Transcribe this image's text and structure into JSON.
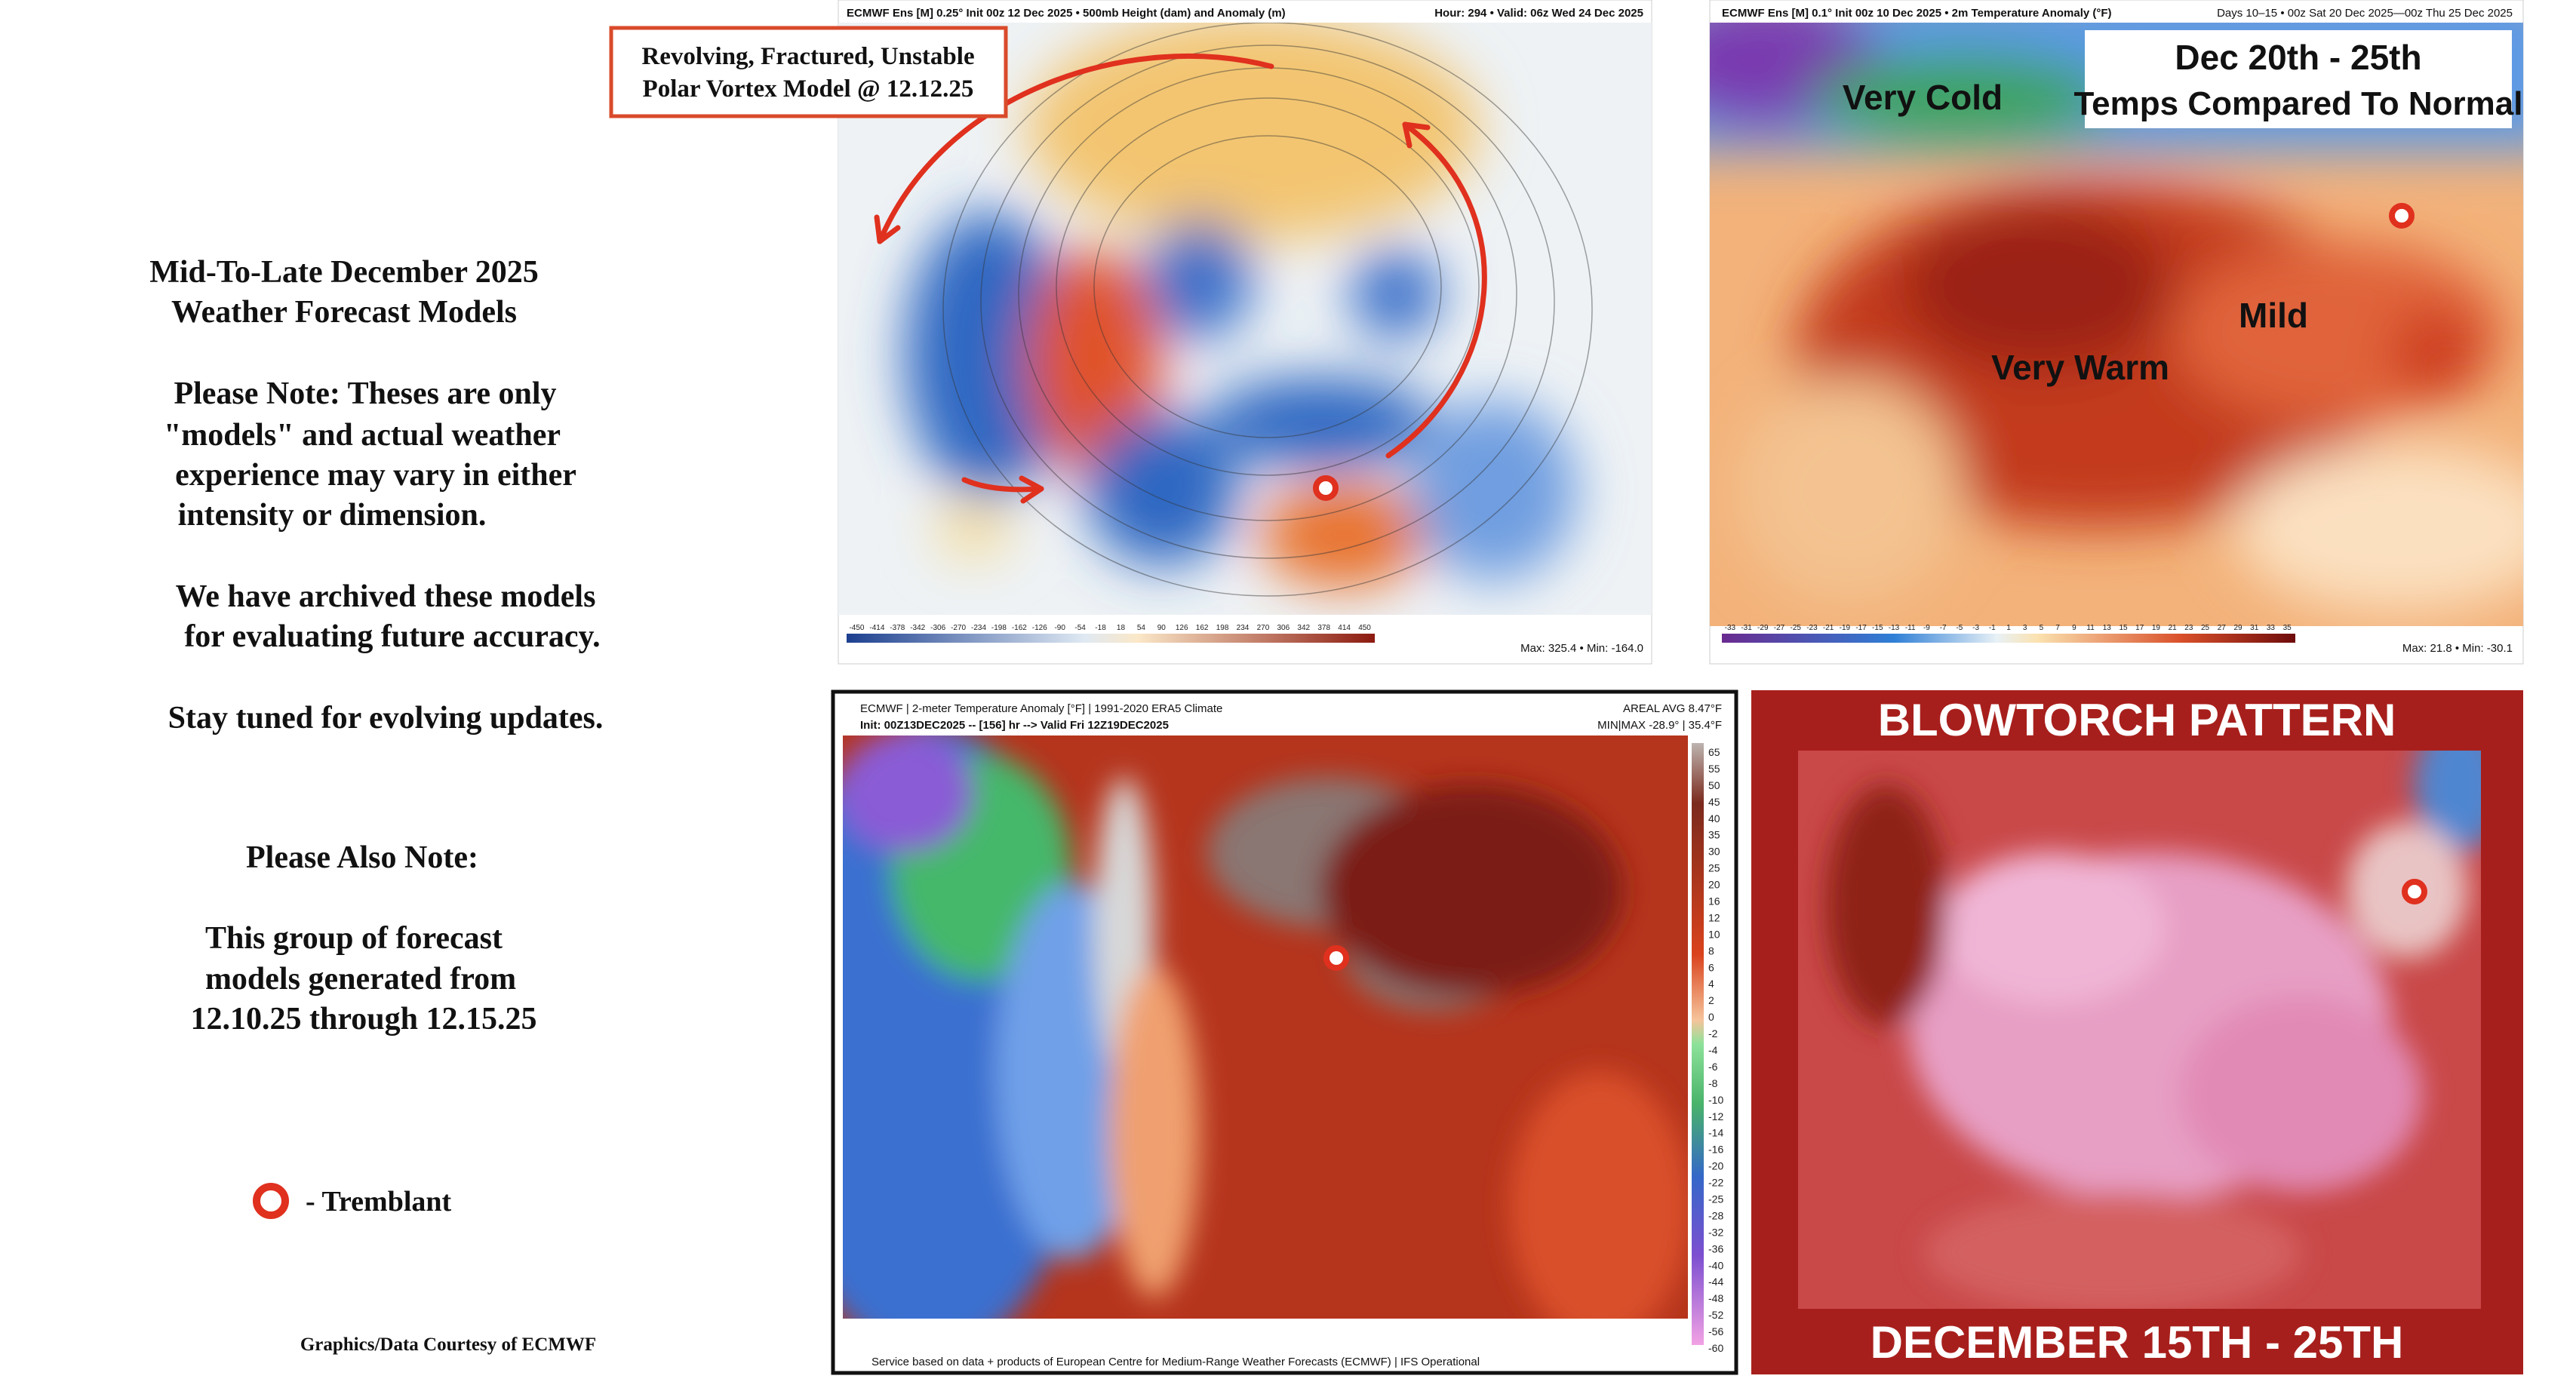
{
  "left_text": {
    "intro": [
      "Mid-To-Late December 2025",
      "Weather Forecast Models"
    ],
    "note": [
      "Please Note: Theses are only",
      "\"models\" and actual weather",
      "experience may vary in either",
      "intensity or dimension."
    ],
    "archive": [
      "We have archived these models",
      "for evaluating future accuracy."
    ],
    "stay_tuned": "Stay tuned for evolving updates.",
    "also_note_title": "Please Also Note:",
    "also_note": [
      "This group of forecast",
      "models generated from",
      "12.10.25 through 12.15.25"
    ],
    "legend": "- Tremblant",
    "credit": "Graphics/Data Courtesy of ECMWF"
  },
  "callout": [
    "Revolving, Fractured, Unstable",
    "Polar Vortex Model @ 12.12.25"
  ],
  "panels": [
    {
      "header_left": "ECMWF Ens [M] 0.25° Init 00z 12 Dec 2025 • 500mb Height (dam) and Anomaly (m)",
      "header_right": "Hour: 294 • Valid: 06z Wed 24 Dec 2025",
      "scale": [
        "-450",
        "-414",
        "-378",
        "-342",
        "-306",
        "-270",
        "-234",
        "-198",
        "-162",
        "-126",
        "-90",
        "-54",
        "-18",
        "18",
        "54",
        "90",
        "126",
        "162",
        "198",
        "234",
        "270",
        "306",
        "342",
        "378",
        "414",
        "450"
      ],
      "footer": "Max: 325.4 • Min: -164.0"
    },
    {
      "header_left": "ECMWF Ens [M] 0.1° Init 00z 10 Dec 2025 • 2m Temperature Anomaly (°F)",
      "header_right": "Days 10–15 • 00z Sat 20 Dec 2025—00z Thu 25 Dec 2025",
      "labels": {
        "very_cold": "Very Cold",
        "dates": "Dec 20th - 25th",
        "compare": "Temps Compared To Normal",
        "very_warm": "Very Warm",
        "mild": "Mild"
      },
      "scale": [
        "-33",
        "-31",
        "-29",
        "-27",
        "-25",
        "-23",
        "-21",
        "-19",
        "-17",
        "-15",
        "-13",
        "-11",
        "-9",
        "-7",
        "-5",
        "-3",
        "-1",
        "1",
        "3",
        "5",
        "7",
        "9",
        "11",
        "13",
        "15",
        "17",
        "19",
        "21",
        "23",
        "25",
        "27",
        "29",
        "31",
        "33",
        "35"
      ],
      "footer": "Max: 21.8 • Min: -30.1"
    },
    {
      "header_left": "ECMWF | 2-meter Temperature Anomaly [°F] | 1991-2020 ERA5 Climate",
      "header_left2": "Init: 00Z13DEC2025 -- [156] hr --> Valid Fri 12Z19DEC2025",
      "header_right": "AREAL AVG 8.47°F",
      "header_right2": "MIN|MAX -28.9° | 35.4°F",
      "scale": [
        "65",
        "55",
        "50",
        "45",
        "40",
        "35",
        "30",
        "25",
        "20",
        "16",
        "12",
        "10",
        "8",
        "6",
        "4",
        "2",
        "0",
        "-2",
        "-4",
        "-6",
        "-8",
        "-10",
        "-12",
        "-14",
        "-16",
        "-20",
        "-22",
        "-25",
        "-28",
        "-32",
        "-36",
        "-40",
        "-44",
        "-48",
        "-52",
        "-56",
        "-60"
      ],
      "footer": "Service based on data + products of European Centre for Medium-Range Weather Forecasts (ECMWF) | IFS Operational"
    },
    {
      "title": "BLOWTORCH PATTERN",
      "footer": "DECEMBER 15TH - 25TH"
    }
  ]
}
